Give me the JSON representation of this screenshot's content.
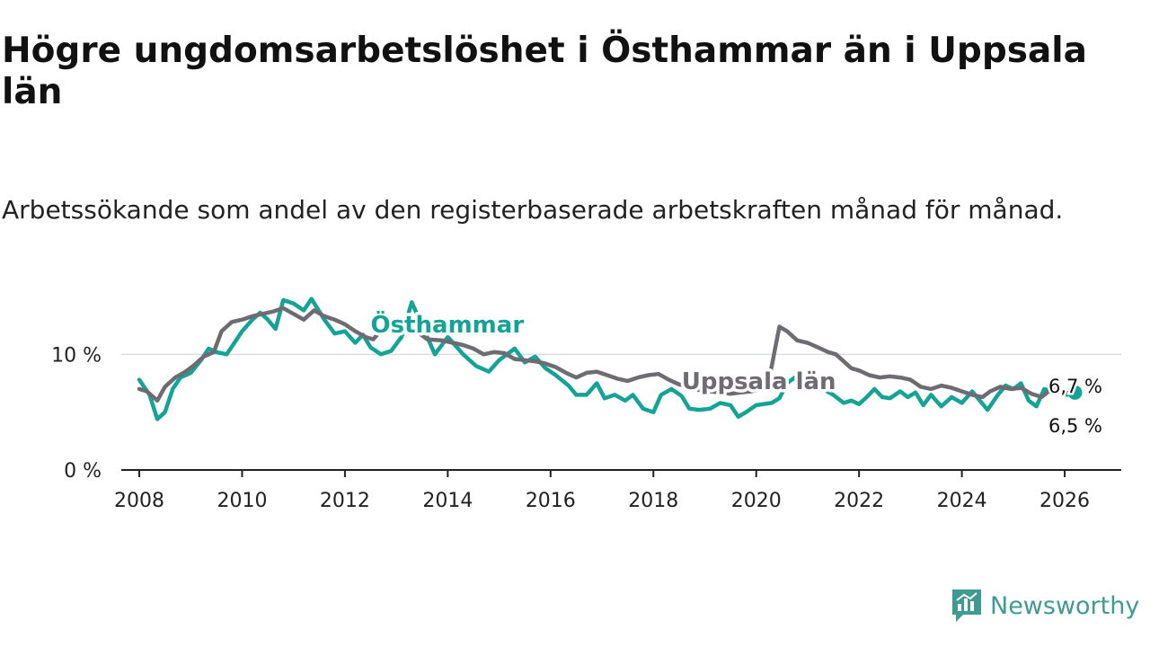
{
  "header": {
    "title": "Högre ungdomsarbetslöshet i Östhammar än i Uppsala län",
    "subtitle": "Arbetssökande som andel av den registerbaserade arbetskraften månad för månad."
  },
  "brand": {
    "name": "Newsworthy",
    "icon": "newsworthy-logo-icon",
    "color": "#3f9a92"
  },
  "colors": {
    "osthammar": "#14a396",
    "uppsala": "#6e6b72",
    "grid": "#dddddd",
    "axis": "#222222"
  },
  "chart_data": {
    "type": "line",
    "title": "Högre ungdomsarbetslöshet i Östhammar än i Uppsala län",
    "xlabel": "",
    "ylabel": "",
    "xlim": [
      2007.65,
      2027.1
    ],
    "ylim": [
      0,
      15
    ],
    "x_ticks": [
      2008,
      2010,
      2012,
      2014,
      2016,
      2018,
      2020,
      2022,
      2024,
      2026
    ],
    "y_ticks": [
      0,
      10
    ],
    "y_tick_labels": [
      "0 %",
      "10 %"
    ],
    "gridlines": true,
    "legend": "inline labels",
    "series": [
      {
        "name": "Östhammar",
        "label": "Östhammar",
        "color": "#14a396",
        "end_label": "6,7 %",
        "points": [
          [
            2008.0,
            7.8
          ],
          [
            2008.2,
            6.5
          ],
          [
            2008.35,
            4.4
          ],
          [
            2008.5,
            5.0
          ],
          [
            2008.65,
            7.0
          ],
          [
            2008.8,
            8.0
          ],
          [
            2009.0,
            8.4
          ],
          [
            2009.2,
            9.5
          ],
          [
            2009.35,
            10.5
          ],
          [
            2009.5,
            10.2
          ],
          [
            2009.7,
            10.0
          ],
          [
            2009.85,
            11.0
          ],
          [
            2010.0,
            12.0
          ],
          [
            2010.2,
            13.0
          ],
          [
            2010.35,
            13.6
          ],
          [
            2010.5,
            13.0
          ],
          [
            2010.65,
            12.2
          ],
          [
            2010.8,
            14.7
          ],
          [
            2011.0,
            14.4
          ],
          [
            2011.2,
            13.8
          ],
          [
            2011.35,
            14.8
          ],
          [
            2011.6,
            13.0
          ],
          [
            2011.8,
            11.8
          ],
          [
            2012.0,
            12.0
          ],
          [
            2012.2,
            11.0
          ],
          [
            2012.35,
            11.7
          ],
          [
            2012.5,
            10.6
          ],
          [
            2012.7,
            10.0
          ],
          [
            2012.9,
            10.3
          ],
          [
            2013.1,
            11.5
          ],
          [
            2013.3,
            14.5
          ],
          [
            2013.5,
            12.5
          ],
          [
            2013.75,
            10.0
          ],
          [
            2014.0,
            11.5
          ],
          [
            2014.3,
            10.0
          ],
          [
            2014.55,
            9.0
          ],
          [
            2014.8,
            8.5
          ],
          [
            2015.0,
            9.5
          ],
          [
            2015.3,
            10.5
          ],
          [
            2015.5,
            9.3
          ],
          [
            2015.7,
            9.8
          ],
          [
            2015.9,
            8.8
          ],
          [
            2016.1,
            8.2
          ],
          [
            2016.35,
            7.3
          ],
          [
            2016.5,
            6.5
          ],
          [
            2016.7,
            6.5
          ],
          [
            2016.9,
            7.5
          ],
          [
            2017.05,
            6.2
          ],
          [
            2017.25,
            6.5
          ],
          [
            2017.45,
            6.0
          ],
          [
            2017.6,
            6.5
          ],
          [
            2017.8,
            5.3
          ],
          [
            2018.0,
            5.0
          ],
          [
            2018.15,
            6.5
          ],
          [
            2018.35,
            7.0
          ],
          [
            2018.55,
            6.4
          ],
          [
            2018.7,
            5.3
          ],
          [
            2018.9,
            5.2
          ],
          [
            2019.1,
            5.3
          ],
          [
            2019.3,
            5.8
          ],
          [
            2019.5,
            5.6
          ],
          [
            2019.65,
            4.6
          ],
          [
            2019.8,
            5.0
          ],
          [
            2020.0,
            5.6
          ],
          [
            2020.3,
            5.8
          ],
          [
            2020.45,
            6.2
          ],
          [
            2020.6,
            7.5
          ],
          [
            2020.75,
            8.0
          ],
          [
            2020.9,
            7.0
          ],
          [
            2021.05,
            8.5
          ],
          [
            2021.3,
            7.0
          ],
          [
            2021.5,
            6.5
          ],
          [
            2021.7,
            5.8
          ],
          [
            2021.85,
            6.0
          ],
          [
            2022.0,
            5.7
          ],
          [
            2022.15,
            6.3
          ],
          [
            2022.3,
            7.0
          ],
          [
            2022.45,
            6.3
          ],
          [
            2022.6,
            6.2
          ],
          [
            2022.8,
            6.8
          ],
          [
            2022.95,
            6.3
          ],
          [
            2023.1,
            6.7
          ],
          [
            2023.25,
            5.6
          ],
          [
            2023.4,
            6.5
          ],
          [
            2023.6,
            5.5
          ],
          [
            2023.8,
            6.3
          ],
          [
            2024.0,
            5.8
          ],
          [
            2024.2,
            6.8
          ],
          [
            2024.35,
            6.0
          ],
          [
            2024.5,
            5.2
          ],
          [
            2024.7,
            6.5
          ],
          [
            2024.85,
            7.3
          ],
          [
            2025.0,
            7.0
          ],
          [
            2025.15,
            7.5
          ],
          [
            2025.3,
            6.0
          ],
          [
            2025.45,
            5.5
          ],
          [
            2025.6,
            7.0
          ],
          [
            2025.75,
            6.8
          ],
          [
            2025.9,
            7.0
          ],
          [
            2026.05,
            6.5
          ],
          [
            2026.2,
            6.7
          ]
        ]
      },
      {
        "name": "Uppsala län",
        "label": "Uppsala län",
        "color": "#6e6b72",
        "end_label": "6,5 %",
        "points": [
          [
            2008.0,
            7.0
          ],
          [
            2008.15,
            6.8
          ],
          [
            2008.35,
            6.0
          ],
          [
            2008.5,
            7.2
          ],
          [
            2008.7,
            8.0
          ],
          [
            2008.9,
            8.5
          ],
          [
            2009.05,
            9.0
          ],
          [
            2009.25,
            9.8
          ],
          [
            2009.45,
            10.2
          ],
          [
            2009.6,
            12.0
          ],
          [
            2009.8,
            12.8
          ],
          [
            2010.0,
            13.0
          ],
          [
            2010.2,
            13.3
          ],
          [
            2010.4,
            13.5
          ],
          [
            2010.6,
            13.7
          ],
          [
            2010.8,
            14.0
          ],
          [
            2011.0,
            13.5
          ],
          [
            2011.2,
            13.0
          ],
          [
            2011.4,
            13.8
          ],
          [
            2011.6,
            13.3
          ],
          [
            2011.8,
            13.0
          ],
          [
            2012.0,
            12.6
          ],
          [
            2012.2,
            12.0
          ],
          [
            2012.4,
            11.5
          ],
          [
            2012.55,
            11.3
          ],
          [
            2012.75,
            12.3
          ],
          [
            2013.0,
            12.6
          ],
          [
            2013.3,
            12.3
          ],
          [
            2013.6,
            11.3
          ],
          [
            2013.9,
            11.2
          ],
          [
            2014.1,
            11.0
          ],
          [
            2014.3,
            10.8
          ],
          [
            2014.5,
            10.5
          ],
          [
            2014.7,
            10.0
          ],
          [
            2014.9,
            10.2
          ],
          [
            2015.1,
            10.1
          ],
          [
            2015.3,
            9.6
          ],
          [
            2015.5,
            9.5
          ],
          [
            2015.7,
            9.4
          ],
          [
            2015.9,
            9.2
          ],
          [
            2016.1,
            8.9
          ],
          [
            2016.3,
            8.4
          ],
          [
            2016.5,
            8.0
          ],
          [
            2016.7,
            8.4
          ],
          [
            2016.9,
            8.5
          ],
          [
            2017.1,
            8.2
          ],
          [
            2017.3,
            7.9
          ],
          [
            2017.5,
            7.7
          ],
          [
            2017.7,
            8.0
          ],
          [
            2017.9,
            8.2
          ],
          [
            2018.1,
            8.3
          ],
          [
            2018.3,
            7.8
          ],
          [
            2018.5,
            7.4
          ],
          [
            2018.7,
            7.2
          ],
          [
            2018.9,
            6.9
          ],
          [
            2019.1,
            6.8
          ],
          [
            2019.3,
            6.7
          ],
          [
            2019.5,
            6.6
          ],
          [
            2019.7,
            6.7
          ],
          [
            2019.9,
            6.8
          ],
          [
            2020.1,
            7.0
          ],
          [
            2020.25,
            7.8
          ],
          [
            2020.45,
            12.4
          ],
          [
            2020.6,
            12.0
          ],
          [
            2020.8,
            11.2
          ],
          [
            2021.0,
            11.0
          ],
          [
            2021.2,
            10.6
          ],
          [
            2021.4,
            10.2
          ],
          [
            2021.55,
            10.0
          ],
          [
            2021.7,
            9.4
          ],
          [
            2021.85,
            8.8
          ],
          [
            2022.0,
            8.6
          ],
          [
            2022.2,
            8.2
          ],
          [
            2022.4,
            8.0
          ],
          [
            2022.6,
            8.1
          ],
          [
            2022.8,
            8.0
          ],
          [
            2023.0,
            7.8
          ],
          [
            2023.2,
            7.2
          ],
          [
            2023.4,
            7.0
          ],
          [
            2023.6,
            7.3
          ],
          [
            2023.8,
            7.1
          ],
          [
            2024.0,
            6.8
          ],
          [
            2024.2,
            6.5
          ],
          [
            2024.4,
            6.3
          ],
          [
            2024.55,
            6.8
          ],
          [
            2024.75,
            7.2
          ],
          [
            2024.95,
            7.0
          ],
          [
            2025.15,
            7.1
          ],
          [
            2025.35,
            6.6
          ],
          [
            2025.55,
            6.3
          ],
          [
            2025.75,
            7.0
          ],
          [
            2025.95,
            6.8
          ],
          [
            2026.1,
            6.6
          ],
          [
            2026.2,
            6.5
          ]
        ]
      }
    ]
  }
}
